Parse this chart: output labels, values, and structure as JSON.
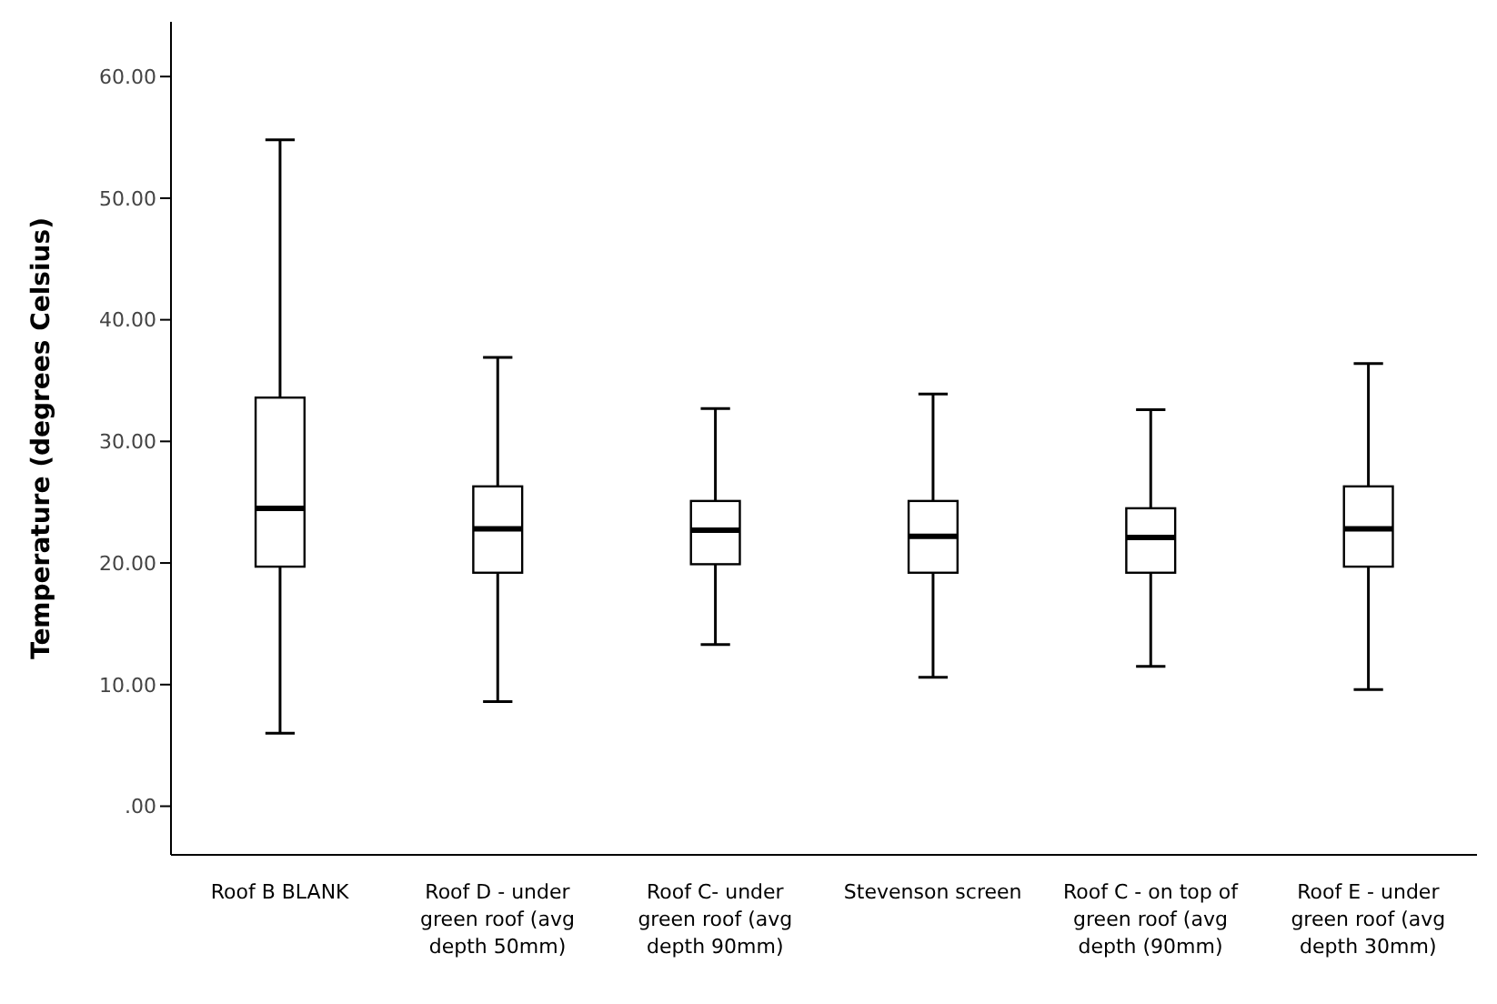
{
  "chart_data": {
    "type": "box",
    "ylabel": "Temperature (degrees Celsius)",
    "categories": [
      "Roof B BLANK",
      "Roof D - under green roof (avg depth 50mm)",
      "Roof C- under green roof (avg depth 90mm)",
      "Stevenson screen",
      "Roof C - on top of green roof (avg depth (90mm)",
      "Roof E - under green roof (avg depth 30mm)"
    ],
    "boxes": [
      {
        "low": 6.0,
        "q1": 19.7,
        "median": 24.5,
        "q3": 33.6,
        "high": 54.8
      },
      {
        "low": 8.6,
        "q1": 19.2,
        "median": 22.8,
        "q3": 26.3,
        "high": 36.9
      },
      {
        "low": 13.3,
        "q1": 19.9,
        "median": 22.7,
        "q3": 25.1,
        "high": 32.7
      },
      {
        "low": 10.6,
        "q1": 19.2,
        "median": 22.2,
        "q3": 25.1,
        "high": 33.9
      },
      {
        "low": 11.5,
        "q1": 19.2,
        "median": 22.1,
        "q3": 24.5,
        "high": 32.6
      },
      {
        "low": 9.6,
        "q1": 19.7,
        "median": 22.8,
        "q3": 26.3,
        "high": 36.4
      }
    ],
    "ylim": [
      -4,
      64.5
    ],
    "yticks": [
      {
        "value": 0,
        "label": ".00"
      },
      {
        "value": 10,
        "label": "10.00"
      },
      {
        "value": 20,
        "label": "20.00"
      },
      {
        "value": 30,
        "label": "30.00"
      },
      {
        "value": 40,
        "label": "40.00"
      },
      {
        "value": 50,
        "label": "50.00"
      },
      {
        "value": 60,
        "label": "60.00"
      }
    ],
    "grid": false,
    "legend": false
  }
}
